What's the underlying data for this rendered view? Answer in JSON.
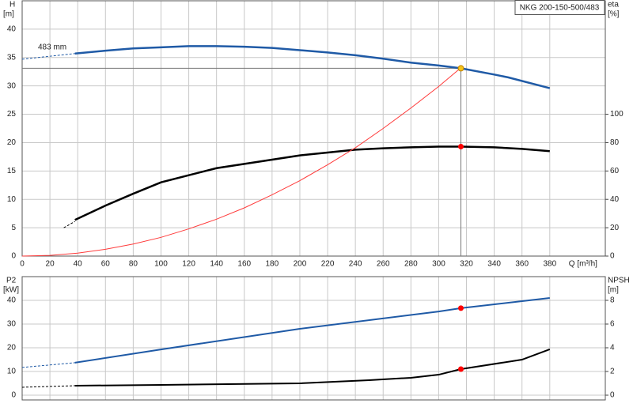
{
  "chart_data": [
    {
      "type": "line",
      "ylabel": "H",
      "yunit": "[m]",
      "y2label": "eta",
      "y2unit": "[%]",
      "xlabel": "Q [m³/h]",
      "curve_label": "483 mm",
      "model_label": "NKG 200-150-500/483",
      "xlim": [
        0,
        420
      ],
      "xticks": [
        0,
        20,
        40,
        60,
        80,
        100,
        120,
        140,
        160,
        180,
        200,
        220,
        240,
        260,
        280,
        300,
        320,
        340,
        360,
        380
      ],
      "ylim": [
        0,
        45
      ],
      "yticks": [
        0,
        5,
        10,
        15,
        20,
        25,
        30,
        35,
        40
      ],
      "y2lim": [
        0,
        180
      ],
      "y2ticks": [
        0,
        20,
        40,
        60,
        80,
        100
      ],
      "grid": true,
      "show_x_tick_labels": true,
      "series": [
        {
          "color": "#1f5aa6",
          "line_style": "dashed",
          "width": 1,
          "axis": "y",
          "x": [
            0,
            38
          ],
          "values": [
            34.7,
            35.7
          ]
        },
        {
          "color": "#1f5aa6",
          "line_style": "solid",
          "width": 2.5,
          "axis": "y",
          "x": [
            38,
            60,
            80,
            100,
            120,
            140,
            160,
            180,
            200,
            220,
            240,
            260,
            280,
            300,
            316,
            340,
            350,
            380
          ],
          "values": [
            35.7,
            36.2,
            36.6,
            36.8,
            37.0,
            37.0,
            36.9,
            36.7,
            36.3,
            35.9,
            35.4,
            34.8,
            34.1,
            33.6,
            33.1,
            32.0,
            31.5,
            29.6
          ]
        },
        {
          "color": "#000000",
          "line_style": "dashed",
          "width": 1,
          "axis": "y2",
          "x": [
            30,
            38
          ],
          "values": [
            20,
            24.4
          ]
        },
        {
          "color": "#000000",
          "line_style": "solid",
          "width": 2.5,
          "axis": "y2",
          "x": [
            38,
            60,
            80,
            100,
            120,
            140,
            160,
            180,
            200,
            220,
            240,
            260,
            280,
            300,
            316,
            340,
            360,
            380
          ],
          "values": [
            25.5,
            35.6,
            44,
            52,
            57,
            62,
            65,
            68,
            71,
            73,
            75,
            76,
            76.7,
            77.2,
            77.2,
            76.7,
            75.6,
            74
          ]
        },
        {
          "color": "#ff3b3b",
          "line_style": "solid",
          "width": 1,
          "axis": "y",
          "x": [
            0,
            20,
            40,
            60,
            80,
            100,
            120,
            140,
            160,
            180,
            200,
            220,
            240,
            260,
            280,
            300,
            316
          ],
          "values": [
            0,
            0.13,
            0.53,
            1.2,
            2.13,
            3.3,
            4.8,
            6.5,
            8.5,
            10.8,
            13.3,
            16.1,
            19.1,
            22.5,
            26.1,
            29.9,
            33.2
          ]
        }
      ],
      "points": [
        {
          "x": 316,
          "value": 33.1,
          "axis": "y",
          "color": "#f5c518"
        },
        {
          "x": 316,
          "value": 77.2,
          "axis": "y2",
          "color": "#ff0000"
        }
      ],
      "guide_lines": true
    },
    {
      "type": "line",
      "ylabel": "P2",
      "yunit": "[kW]",
      "y2label": "NPSH",
      "y2unit": "[m]",
      "xlim": [
        0,
        420
      ],
      "xticks": [
        0,
        20,
        40,
        60,
        80,
        100,
        120,
        140,
        160,
        180,
        200,
        220,
        240,
        260,
        280,
        300,
        320,
        340,
        360,
        380
      ],
      "ylim": [
        -2,
        50
      ],
      "yticks": [
        0,
        10,
        20,
        30,
        40
      ],
      "y2lim": [
        -0.4,
        10
      ],
      "y2ticks": [
        0,
        2,
        4,
        6,
        8
      ],
      "grid": true,
      "show_x_tick_labels": false,
      "series": [
        {
          "color": "#1f5aa6",
          "line_style": "dashed",
          "width": 1,
          "axis": "y",
          "x": [
            0,
            38
          ],
          "values": [
            11.7,
            13.7
          ]
        },
        {
          "color": "#1f5aa6",
          "line_style": "solid",
          "width": 2,
          "axis": "y",
          "x": [
            38,
            100,
            200,
            300,
            316,
            380
          ],
          "values": [
            13.7,
            19.3,
            28,
            35.3,
            36.7,
            41
          ]
        },
        {
          "color": "#000000",
          "line_style": "dashed",
          "width": 1,
          "axis": "y2",
          "x": [
            0,
            38
          ],
          "values": [
            0.67,
            0.8
          ]
        },
        {
          "color": "#000000",
          "line_style": "solid",
          "width": 2,
          "axis": "y2",
          "x": [
            38,
            100,
            200,
            250,
            280,
            300,
            316,
            360,
            380
          ],
          "values": [
            0.8,
            0.87,
            1.0,
            1.27,
            1.47,
            1.73,
            2.2,
            3.0,
            3.87
          ]
        }
      ],
      "points": [
        {
          "x": 316,
          "value": 36.7,
          "axis": "y",
          "color": "#ff0000"
        },
        {
          "x": 316,
          "value": 2.2,
          "axis": "y2",
          "color": "#ff0000"
        }
      ],
      "guide_lines": false
    }
  ]
}
